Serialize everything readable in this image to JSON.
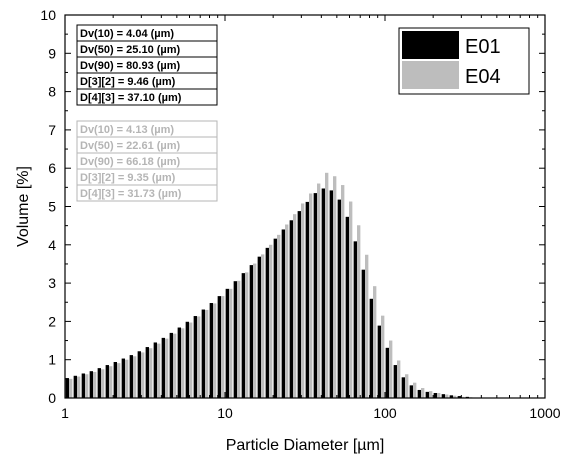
{
  "chart_data": {
    "type": "bar",
    "xscale": "log",
    "xlim": [
      1,
      1000
    ],
    "ylim": [
      0,
      10
    ],
    "grid": false,
    "xlabel": "Particle Diameter [µm]",
    "ylabel": "Volume [%]",
    "x_ticks": [
      "1",
      "10",
      "100",
      "1000"
    ],
    "y_ticks": [
      "0",
      "1",
      "2",
      "3",
      "4",
      "5",
      "6",
      "7",
      "8",
      "9",
      "10"
    ],
    "legend_position": "top-right",
    "bin_edges": [
      1.0,
      1.122,
      1.259,
      1.413,
      1.585,
      1.778,
      1.995,
      2.239,
      2.512,
      2.818,
      3.162,
      3.548,
      3.981,
      4.467,
      5.012,
      5.623,
      6.31,
      7.079,
      7.943,
      8.913,
      10.0,
      11.22,
      12.59,
      14.13,
      15.85,
      17.78,
      19.95,
      22.39,
      25.12,
      28.18,
      31.62,
      35.48,
      39.81,
      44.67,
      50.12,
      56.23,
      63.1,
      70.79,
      79.43,
      89.13,
      100.0,
      112.2,
      125.9,
      141.3,
      158.5,
      177.8,
      199.5,
      223.9,
      251.2,
      281.8,
      316.2,
      354.8,
      398.1
    ],
    "series": [
      {
        "name": "E01",
        "color": "#000000",
        "values": [
          0.52,
          0.58,
          0.64,
          0.7,
          0.78,
          0.86,
          0.94,
          1.03,
          1.12,
          1.22,
          1.33,
          1.45,
          1.57,
          1.7,
          1.84,
          1.99,
          2.14,
          2.31,
          2.48,
          2.66,
          2.85,
          3.05,
          3.26,
          3.47,
          3.69,
          3.92,
          4.16,
          4.4,
          4.64,
          4.88,
          5.12,
          5.35,
          5.47,
          5.42,
          5.18,
          4.73,
          4.09,
          3.35,
          2.59,
          1.89,
          1.31,
          0.86,
          0.54,
          0.33,
          0.21,
          0.16,
          0.13,
          0.1,
          0.07,
          0.05,
          0.03,
          0.01
        ]
      },
      {
        "name": "E04",
        "color": "#bdbdbd",
        "values": [
          0.5,
          0.56,
          0.62,
          0.68,
          0.75,
          0.83,
          0.91,
          1.0,
          1.09,
          1.19,
          1.3,
          1.42,
          1.55,
          1.68,
          1.82,
          1.97,
          2.13,
          2.3,
          2.47,
          2.66,
          2.85,
          3.06,
          3.28,
          3.51,
          3.75,
          4.0,
          4.26,
          4.53,
          4.8,
          5.08,
          5.34,
          5.6,
          5.88,
          5.79,
          5.56,
          5.13,
          4.51,
          3.74,
          2.92,
          2.15,
          1.5,
          0.98,
          0.62,
          0.4,
          0.26,
          0.18,
          0.13,
          0.09,
          0.06,
          0.03,
          0.02,
          0.01
        ]
      }
    ],
    "stats": {
      "E01": [
        "Dv(10) = 4.04 (µm)",
        "Dv(50) = 25.10 (µm)",
        "Dv(90) = 80.93 (µm)",
        "D[3][2] = 9.46 (µm)",
        "D[4][3] = 37.10 (µm)"
      ],
      "E04": [
        "Dv(10) = 4.13 (µm)",
        "Dv(50) = 22.61 (µm)",
        "Dv(90) = 66.18 (µm)",
        "D[3][2] = 9.35 (µm)",
        "D[4][3] = 31.73 (µm)"
      ]
    }
  }
}
